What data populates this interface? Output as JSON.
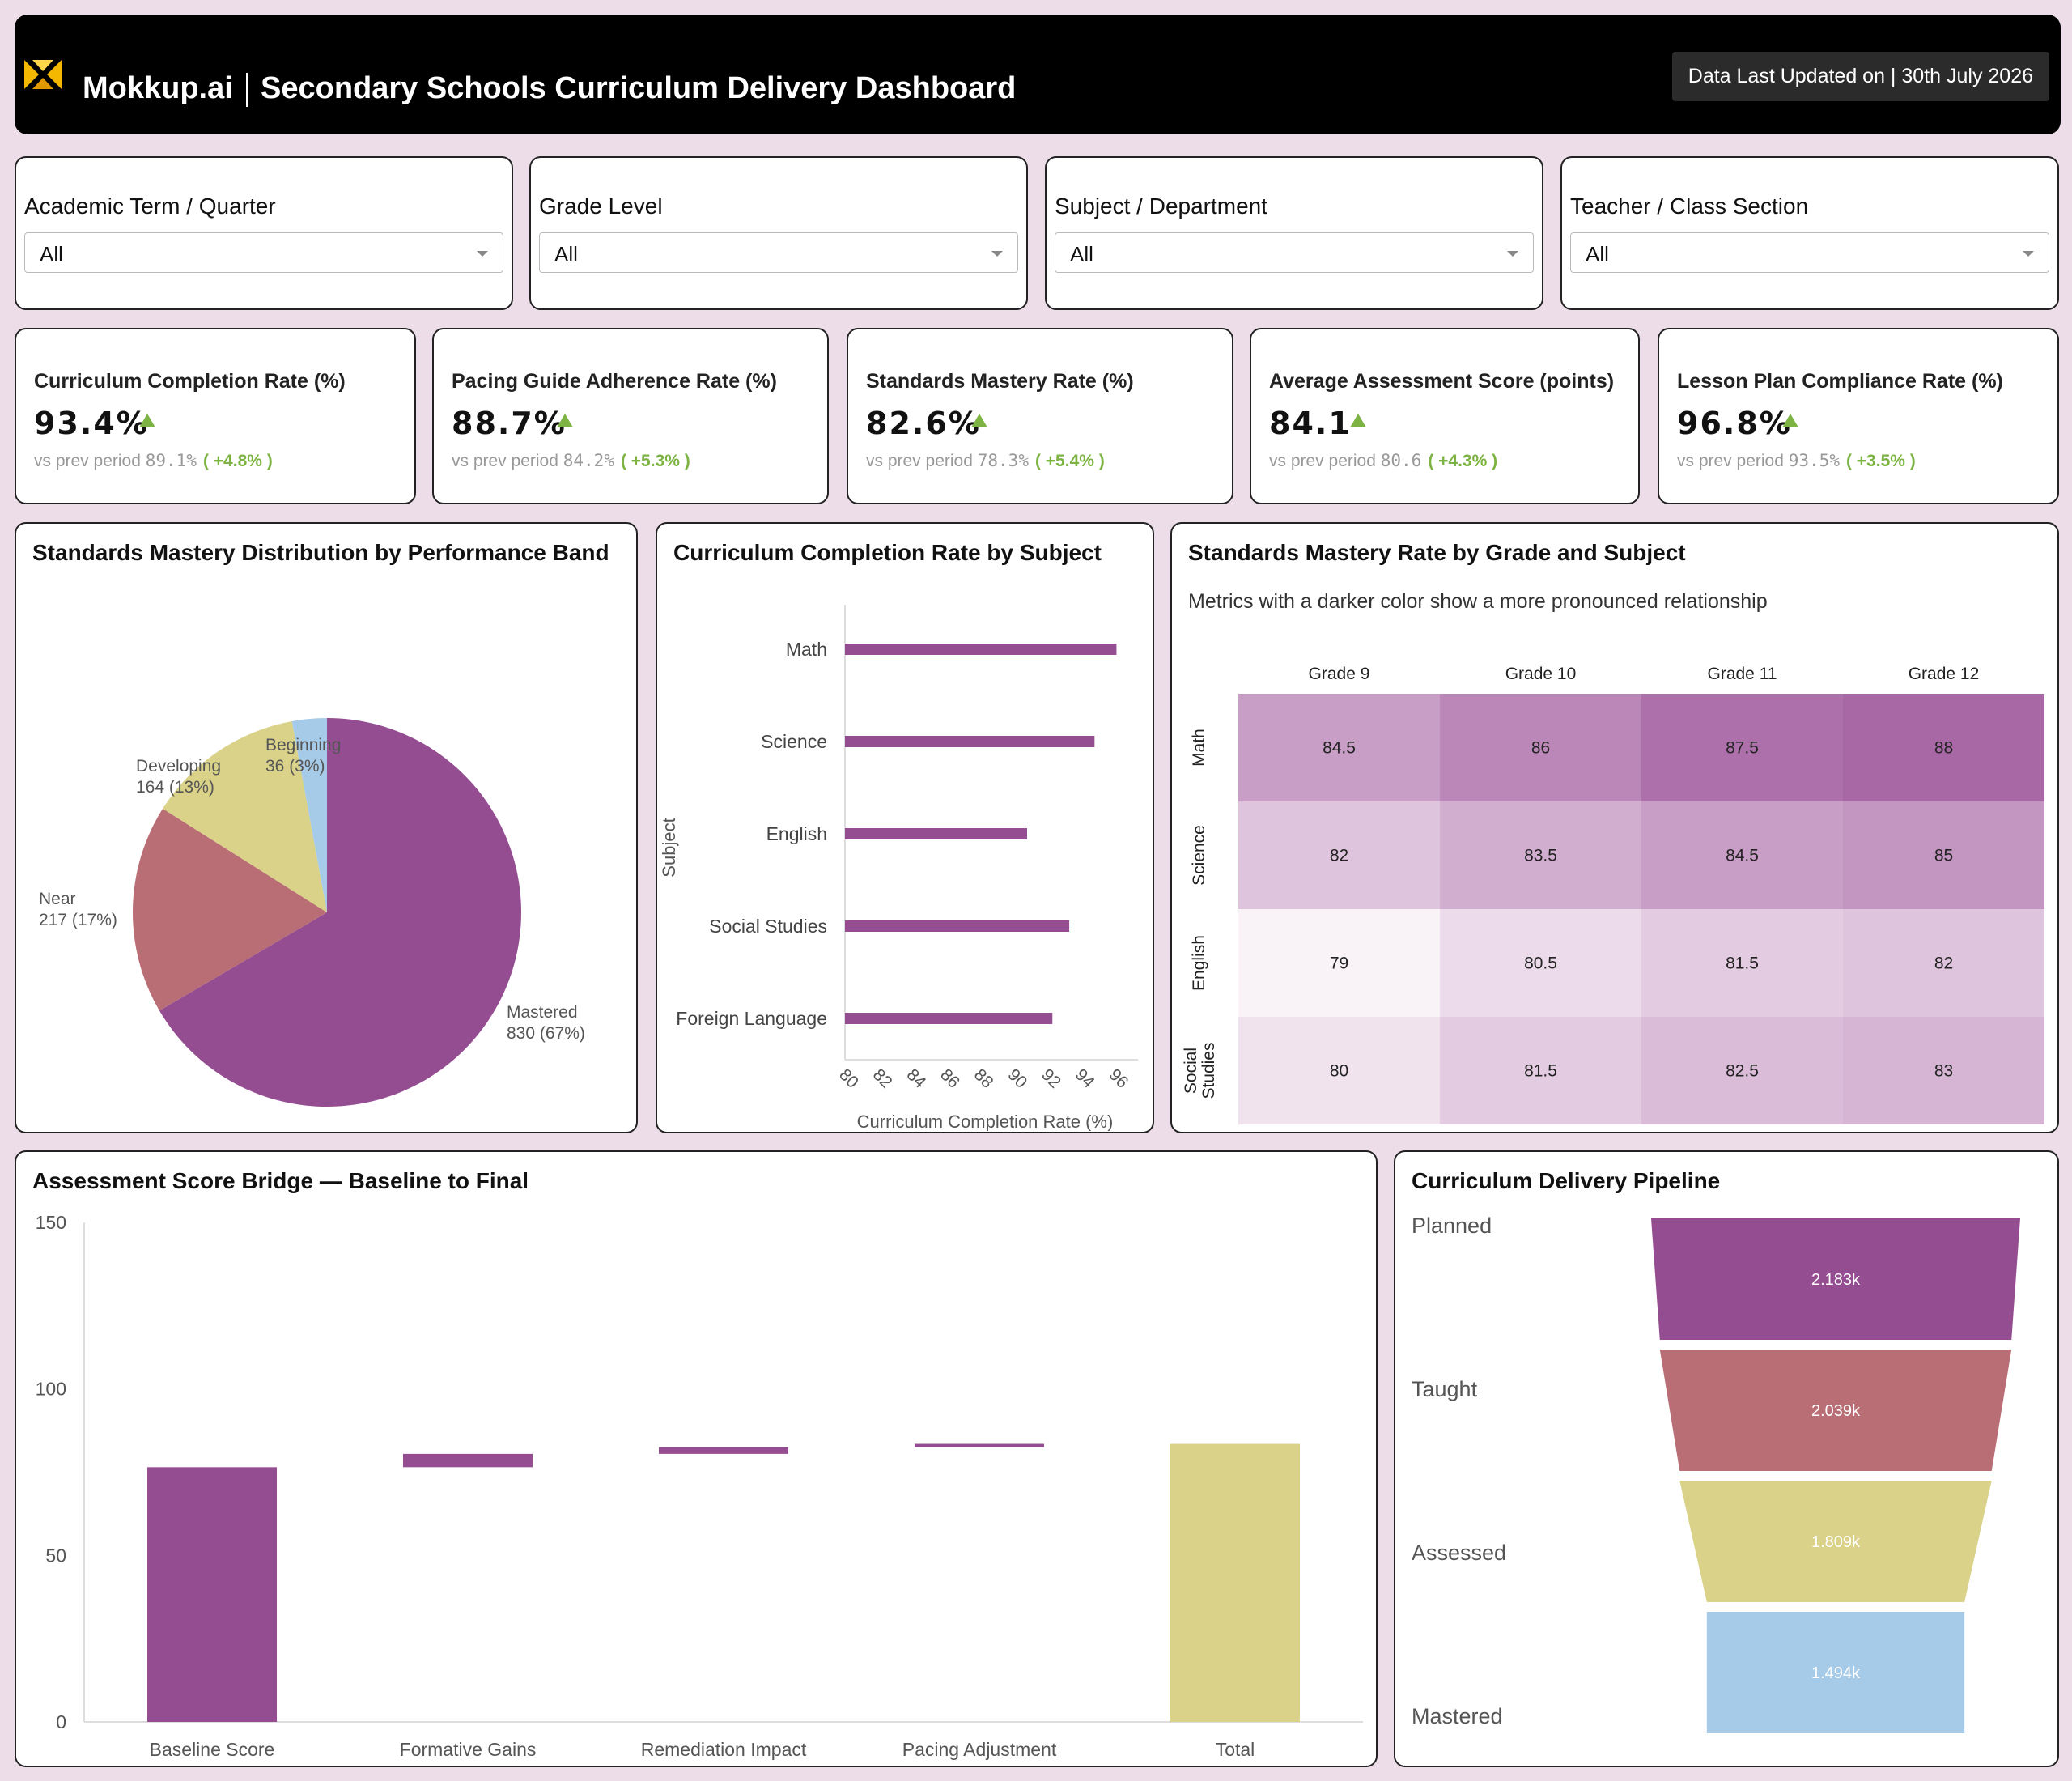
{
  "header": {
    "brand": "Mokkup.ai",
    "title": "Secondary Schools Curriculum Delivery Dashboard",
    "updated": "Data Last Updated on | 30th July 2026"
  },
  "filters": [
    {
      "label": "Academic Term / Quarter",
      "value": "All"
    },
    {
      "label": "Grade Level",
      "value": "All"
    },
    {
      "label": "Subject / Department",
      "value": "All"
    },
    {
      "label": "Teacher / Class Section",
      "value": "All"
    }
  ],
  "kpis": [
    {
      "title": "Curriculum Completion Rate (%)",
      "value": "93.4%",
      "prev_label": "vs prev period",
      "prev": "89.1%",
      "delta": "( +4.8% )"
    },
    {
      "title": "Pacing Guide Adherence Rate (%)",
      "value": "88.7%",
      "prev_label": "vs prev period",
      "prev": "84.2%",
      "delta": "( +5.3% )"
    },
    {
      "title": "Standards Mastery Rate (%)",
      "value": "82.6%",
      "prev_label": "vs prev period",
      "prev": "78.3%",
      "delta": "( +5.4% )"
    },
    {
      "title": "Average Assessment Score (points)",
      "value": "84.1",
      "prev_label": "vs prev period",
      "prev": "80.6",
      "delta": "( +4.3% )"
    },
    {
      "title": "Lesson Plan Compliance Rate (%)",
      "value": "96.8%",
      "prev_label": "vs prev period",
      "prev": "93.5%",
      "delta": "( +3.5% )"
    }
  ],
  "colors": {
    "purple": "#944d91",
    "rose": "#b96e76",
    "khaki": "#d9d288",
    "blue": "#a6cbe8",
    "accent_up": "#7cb342"
  },
  "icons": {
    "logo": "mokkup-logo-icon",
    "dropdown": "chevron-down-icon",
    "trend": "triangle-up-icon"
  },
  "charts": {
    "pie": {
      "title": "Standards Mastery Distribution by Performance Band"
    },
    "bar": {
      "title": "Curriculum Completion Rate by Subject"
    },
    "heatmap": {
      "title": "Standards Mastery Rate by Grade and Subject",
      "subtitle": "Metrics with a darker color show a more pronounced relationship"
    },
    "waterfall": {
      "title": "Assessment Score Bridge — Baseline to Final"
    },
    "funnel": {
      "title": "Curriculum Delivery Pipeline"
    }
  },
  "chart_data": [
    {
      "type": "pie",
      "title": "Standards Mastery Distribution by Performance Band",
      "slices": [
        {
          "label": "Mastered",
          "value": 830,
          "display": "830 (67%)",
          "color": "#944d91"
        },
        {
          "label": "Near",
          "value": 217,
          "display": "217 (17%)",
          "color": "#b96e76"
        },
        {
          "label": "Developing",
          "value": 164,
          "display": "164 (13%)",
          "color": "#d9d288"
        },
        {
          "label": "Beginning",
          "value": 36,
          "display": "36 (3%)",
          "color": "#a6cbe8"
        }
      ]
    },
    {
      "type": "bar",
      "orientation": "horizontal",
      "title": "Curriculum Completion Rate by Subject",
      "categories": [
        "Math",
        "Science",
        "English",
        "Social Studies",
        "Foreign Language"
      ],
      "values": [
        96.1,
        94.8,
        90.8,
        93.3,
        92.3
      ],
      "xlabel": "Curriculum Completion Rate (%)",
      "ylabel": "Subject",
      "xlim": [
        80,
        96.8
      ],
      "xticks": [
        80,
        82,
        84,
        86,
        88,
        90,
        92,
        94,
        96
      ]
    },
    {
      "type": "heatmap",
      "title": "Standards Mastery Rate by Grade and Subject",
      "columns": [
        "Grade 9",
        "Grade 10",
        "Grade 11",
        "Grade 12"
      ],
      "rows": [
        "Math",
        "Science",
        "English",
        "Social Studies"
      ],
      "values": [
        [
          84.5,
          86,
          87.5,
          88
        ],
        [
          82,
          83.5,
          84.5,
          85
        ],
        [
          79,
          80.5,
          81.5,
          82
        ],
        [
          80,
          81.5,
          82.5,
          83
        ]
      ]
    },
    {
      "type": "bar",
      "subtype": "waterfall",
      "title": "Assessment Score Bridge — Baseline to Final",
      "categories": [
        "Baseline Score",
        "Formative Gains",
        "Remediation Impact",
        "Pacing Adjustment",
        "Total"
      ],
      "values": [
        76.5,
        4.0,
        2.0,
        1.0,
        83.5
      ],
      "kinds": [
        "absolute",
        "delta",
        "delta",
        "delta",
        "total"
      ],
      "ylim": [
        0,
        150
      ],
      "yticks": [
        0,
        50,
        100,
        150
      ]
    },
    {
      "type": "funnel",
      "title": "Curriculum Delivery Pipeline",
      "stages": [
        {
          "label": "Planned",
          "value": 2183,
          "display": "2.183k",
          "color": "#944d91"
        },
        {
          "label": "Taught",
          "value": 2039,
          "display": "2.039k",
          "color": "#b96e76"
        },
        {
          "label": "Assessed",
          "value": 1809,
          "display": "1.809k",
          "color": "#d9d288"
        },
        {
          "label": "Mastered",
          "value": 1494,
          "display": "1.494k",
          "color": "#a6cbe8"
        }
      ]
    }
  ]
}
